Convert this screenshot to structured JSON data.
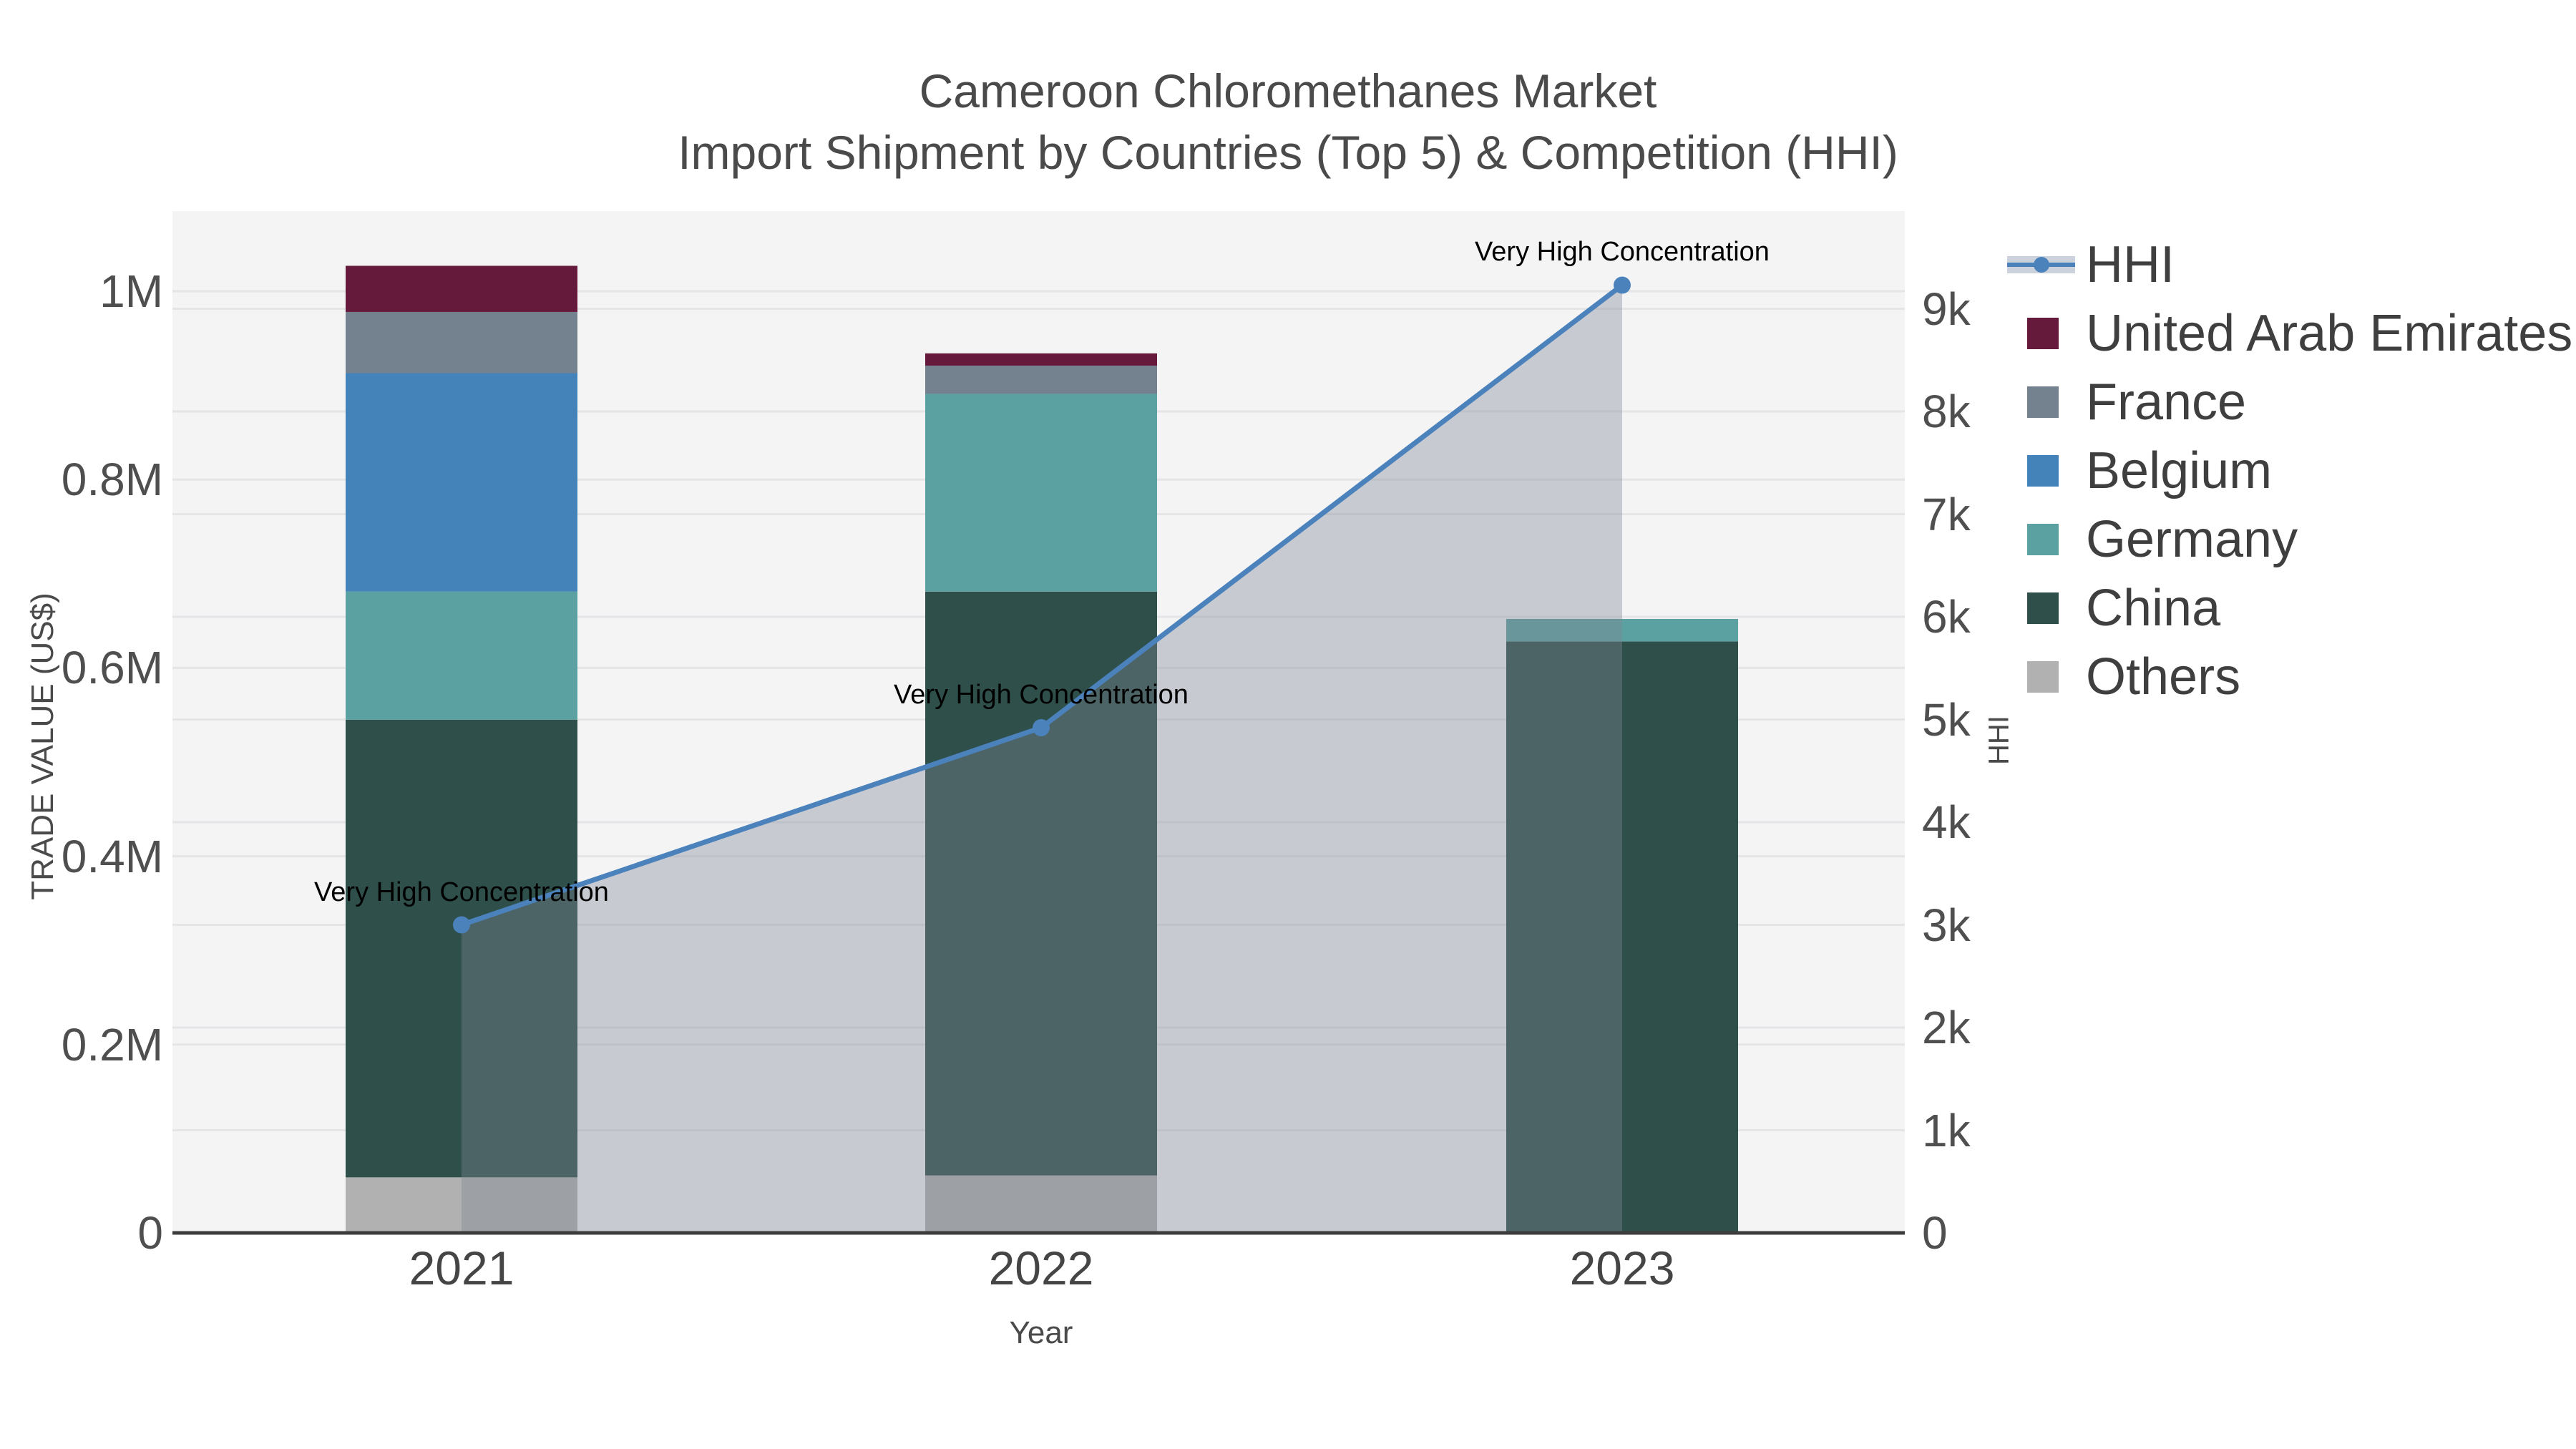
{
  "title": {
    "line1": "Cameroon Chloromethanes Market",
    "line2": "Import Shipment by Countries (Top 5) & Competition (HHI)"
  },
  "axes": {
    "left": {
      "label": "TRADE VALUE (US$)",
      "ticks": [
        {
          "v": 0,
          "t": "0"
        },
        {
          "v": 200000,
          "t": "0.2M"
        },
        {
          "v": 400000,
          "t": "0.4M"
        },
        {
          "v": 600000,
          "t": "0.6M"
        },
        {
          "v": 800000,
          "t": "0.8M"
        },
        {
          "v": 1000000,
          "t": "1M"
        }
      ]
    },
    "right": {
      "label": "HHI",
      "ticks": [
        {
          "v": 0,
          "t": "0"
        },
        {
          "v": 1000,
          "t": "1k"
        },
        {
          "v": 2000,
          "t": "2k"
        },
        {
          "v": 3000,
          "t": "3k"
        },
        {
          "v": 4000,
          "t": "4k"
        },
        {
          "v": 5000,
          "t": "5k"
        },
        {
          "v": 6000,
          "t": "6k"
        },
        {
          "v": 7000,
          "t": "7k"
        },
        {
          "v": 8000,
          "t": "8k"
        },
        {
          "v": 9000,
          "t": "9k"
        }
      ]
    },
    "x": {
      "label": "Year"
    }
  },
  "legend_order": [
    "HHI",
    "United Arab Emirates",
    "France",
    "Belgium",
    "Germany",
    "China",
    "Others"
  ],
  "colors": {
    "plot_bg": "#f4f4f5",
    "grid": "#e5e5e7",
    "axis_line": "#3c3c3c",
    "hhi_line": "#4b82bc",
    "hhi_area": "rgba(126,135,148,0.38)",
    "title_text": "#4a4a4a"
  },
  "chart_data": {
    "type": "combo: stacked bar (left axis) + line with area fill (right axis)",
    "title": "Cameroon Chloromethanes Market — Import Shipment by Countries (Top 5) & Competition (HHI)",
    "categories": [
      "2021",
      "2022",
      "2023"
    ],
    "xlabel": "Year",
    "ylabel_left": "TRADE VALUE (US$)",
    "ylabel_right": "HHI",
    "ylim_left": [
      0,
      1085000
    ],
    "ylim_right": [
      0,
      9950
    ],
    "grid": true,
    "legend_position": "right",
    "bar_stack_order_bottom_to_top": [
      "Others",
      "China",
      "Germany",
      "Belgium",
      "France",
      "United Arab Emirates"
    ],
    "series": [
      {
        "name": "United Arab Emirates",
        "type": "bar",
        "axis": "left",
        "color": "#661a3b",
        "values": [
          49000,
          13000,
          0
        ]
      },
      {
        "name": "France",
        "type": "bar",
        "axis": "left",
        "color": "#74818f",
        "values": [
          65000,
          30000,
          0
        ]
      },
      {
        "name": "Belgium",
        "type": "bar",
        "axis": "left",
        "color": "#4483ba",
        "values": [
          232000,
          0,
          0
        ]
      },
      {
        "name": "Germany",
        "type": "bar",
        "axis": "left",
        "color": "#5ca1a1",
        "values": [
          136000,
          210000,
          24000
        ]
      },
      {
        "name": "China",
        "type": "bar",
        "axis": "left",
        "color": "#2f4f4b",
        "values": [
          486000,
          620000,
          628000
        ]
      },
      {
        "name": "Others",
        "type": "bar",
        "axis": "left",
        "color": "#b1b1b1",
        "values": [
          59000,
          61000,
          0
        ]
      },
      {
        "name": "HHI",
        "type": "line_area",
        "axis": "right",
        "color": "#4b82bc",
        "values": [
          3000,
          4920,
          9230
        ]
      }
    ],
    "bar_totals": [
      1027000,
      934000,
      652000
    ],
    "annotations": [
      {
        "category": "2021",
        "text": "Very High Concentration"
      },
      {
        "category": "2022",
        "text": "Very High Concentration"
      },
      {
        "category": "2023",
        "text": "Very High Concentration"
      }
    ]
  }
}
